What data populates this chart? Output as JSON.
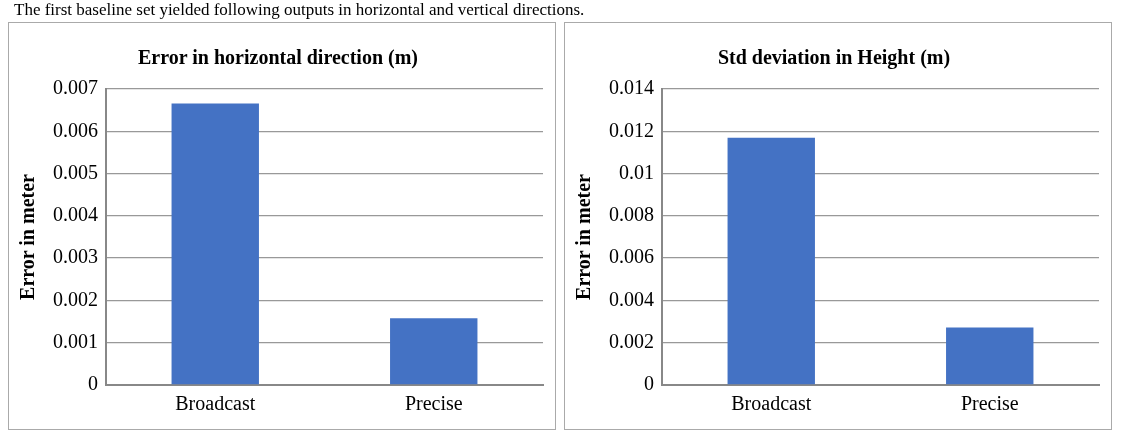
{
  "chart_data": [
    {
      "type": "bar",
      "title": "Error in horizontal direction (m)",
      "ylabel": "Error in meter",
      "categories": [
        "Broadcast",
        "Precise"
      ],
      "values": [
        0.00666,
        0.00158
      ],
      "color": "#4472c4",
      "ylim": [
        0,
        0.007
      ],
      "yticks": [
        0,
        0.001,
        0.002,
        0.003,
        0.004,
        0.005,
        0.006,
        0.007
      ],
      "grid": "y",
      "annotations": [
        "The first baseline set yielded following outputs in horizontal and vertical directions."
      ]
    },
    {
      "type": "bar",
      "title": "Std deviation in Height (m)",
      "ylabel": "Error in meter",
      "categories": [
        "Broadcast",
        "Precise"
      ],
      "values": [
        0.0117,
        0.00272
      ],
      "color": "#4472c4",
      "ylim": [
        0,
        0.014
      ],
      "yticks": [
        0,
        0.002,
        0.004,
        0.006,
        0.008,
        0.01,
        0.012,
        0.014
      ],
      "grid": "y"
    }
  ]
}
